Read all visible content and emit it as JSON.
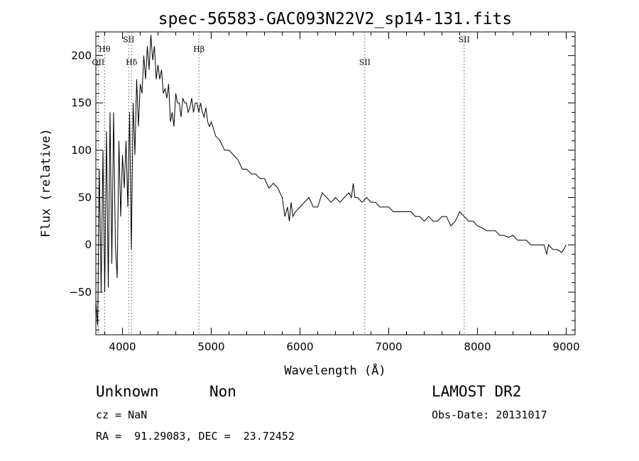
{
  "chart_data": {
    "type": "line",
    "title": "spec-56583-GAC093N22V2_sp14-131.fits",
    "xlabel": "Wavelength (Å)",
    "ylabel": "Flux (relative)",
    "xlim": [
      3700,
      9100
    ],
    "ylim": [
      -95,
      225
    ],
    "x_ticks": [
      4000,
      5000,
      6000,
      7000,
      8000,
      9000
    ],
    "y_ticks": [
      -50,
      0,
      50,
      100,
      150,
      200
    ],
    "grid": false,
    "series": [
      {
        "x": [
          3700,
          3720,
          3740,
          3760,
          3780,
          3800,
          3820,
          3840,
          3860,
          3880,
          3900,
          3920,
          3940,
          3960,
          3980,
          4000,
          4020,
          4040,
          4060,
          4080,
          4100,
          4120,
          4140,
          4160,
          4180,
          4200,
          4220,
          4240,
          4260,
          4280,
          4300,
          4320,
          4340,
          4360,
          4380,
          4400,
          4420,
          4440,
          4460,
          4480,
          4500,
          4520,
          4540,
          4560,
          4580,
          4600,
          4620,
          4640,
          4660,
          4680,
          4700,
          4720,
          4740,
          4760,
          4780,
          4800,
          4820,
          4840,
          4860,
          4880,
          4900,
          4920,
          4940,
          4960,
          4980,
          5000,
          5050,
          5100,
          5150,
          5200,
          5250,
          5300,
          5350,
          5400,
          5450,
          5500,
          5550,
          5600,
          5650,
          5700,
          5750,
          5800,
          5830,
          5860,
          5880,
          5900,
          5920,
          5950,
          6000,
          6050,
          6100,
          6150,
          6200,
          6250,
          6300,
          6350,
          6400,
          6450,
          6500,
          6550,
          6580,
          6600,
          6620,
          6650,
          6700,
          6750,
          6800,
          6850,
          6900,
          6950,
          7000,
          7050,
          7100,
          7150,
          7200,
          7250,
          7300,
          7350,
          7400,
          7450,
          7500,
          7550,
          7600,
          7650,
          7700,
          7750,
          7800,
          7850,
          7900,
          7950,
          8000,
          8050,
          8100,
          8150,
          8200,
          8250,
          8300,
          8350,
          8400,
          8450,
          8500,
          8550,
          8600,
          8650,
          8700,
          8750,
          8780,
          8800,
          8850,
          8900,
          8950,
          9000
        ],
        "y": [
          -60,
          -85,
          80,
          -50,
          100,
          -50,
          120,
          -45,
          140,
          -20,
          140,
          0,
          -35,
          110,
          30,
          95,
          60,
          110,
          40,
          140,
          -5,
          150,
          95,
          175,
          125,
          170,
          160,
          200,
          175,
          210,
          185,
          222,
          195,
          210,
          175,
          190,
          175,
          185,
          160,
          165,
          155,
          170,
          130,
          140,
          125,
          160,
          150,
          150,
          135,
          155,
          150,
          150,
          140,
          145,
          155,
          140,
          150,
          150,
          140,
          150,
          140,
          135,
          145,
          130,
          125,
          130,
          115,
          110,
          100,
          100,
          95,
          90,
          80,
          80,
          75,
          75,
          70,
          70,
          60,
          65,
          60,
          50,
          30,
          40,
          25,
          45,
          30,
          35,
          40,
          45,
          50,
          40,
          40,
          55,
          50,
          45,
          50,
          45,
          50,
          55,
          50,
          65,
          50,
          50,
          45,
          50,
          45,
          45,
          40,
          40,
          40,
          35,
          35,
          35,
          35,
          35,
          30,
          30,
          25,
          30,
          25,
          25,
          30,
          30,
          20,
          25,
          35,
          30,
          25,
          25,
          20,
          18,
          15,
          15,
          15,
          10,
          10,
          8,
          10,
          5,
          5,
          5,
          0,
          0,
          0,
          0,
          -10,
          0,
          -5,
          -5,
          -8,
          0
        ]
      }
    ],
    "lines": [
      {
        "label": "OII",
        "x": 3727,
        "label_y": 190
      },
      {
        "label": "Hθ",
        "x": 3798,
        "label_y": 204
      },
      {
        "label": "Hδ",
        "x": 4102,
        "label_y": 190
      },
      {
        "label": "SII",
        "x": 4070,
        "label_y": 214
      },
      {
        "label": "Hβ",
        "x": 4861,
        "label_y": 204
      },
      {
        "label": "SII",
        "x": 6731,
        "label_y": 190
      },
      {
        "label": "SII",
        "x": 7850,
        "label_y": 214
      }
    ]
  },
  "info": {
    "class_label": "Unknown",
    "subclass_label": "Non",
    "survey": "LAMOST DR2",
    "cz": "cz = NaN",
    "obs_date": "Obs-Date: 20131017",
    "coords": "RA =  91.29083, DEC =  23.72452"
  }
}
